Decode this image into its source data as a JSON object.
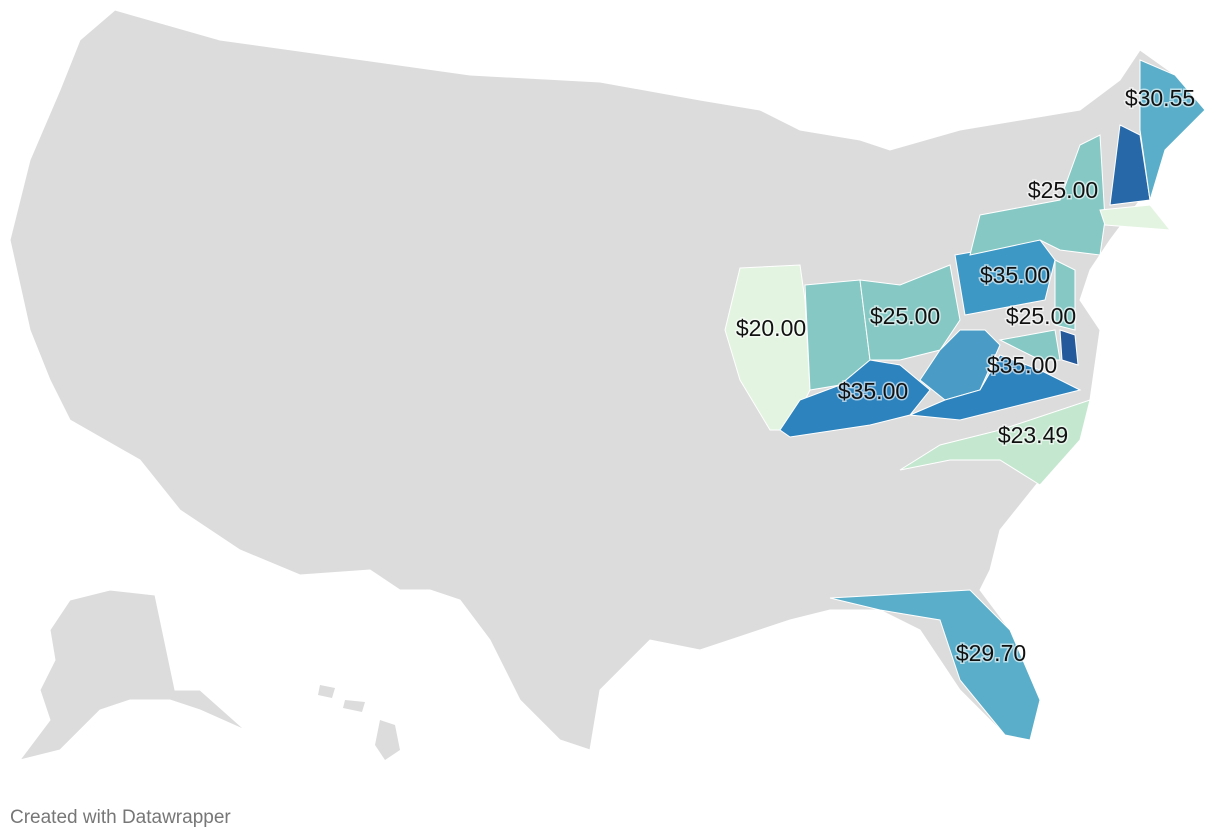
{
  "labels": [
    "$30.55",
    "$25.00",
    "$35.00",
    "$20.00",
    "$25.00",
    "$25.00",
    "$35.00",
    "$35.00",
    "$23.49",
    "$29.70"
  ],
  "footer": "Created with Datawrapper"
}
